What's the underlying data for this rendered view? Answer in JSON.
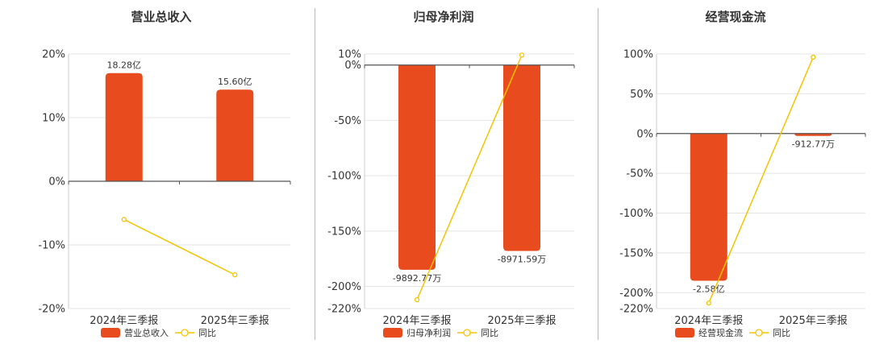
{
  "chart_data": [
    {
      "type": "bar",
      "title": "营业总收入",
      "categories": [
        "2024年三季报",
        "2025年三季报"
      ],
      "yticks": [
        "20%",
        "10%",
        "0%",
        "-10%",
        "-20%"
      ],
      "ylim": [
        -20,
        20
      ],
      "series": [
        {
          "name": "营业总收入",
          "kind": "bar",
          "values": [
            17,
            14.4
          ],
          "labels": [
            "18.28亿",
            "15.60亿"
          ],
          "color": "#e84c1e"
        },
        {
          "name": "同比",
          "kind": "line",
          "values": [
            -6.0,
            -14.7
          ],
          "color": "#f5c400"
        }
      ],
      "legend": "bottom"
    },
    {
      "type": "bar",
      "title": "归母净利润",
      "categories": [
        "2024年三季报",
        "2025年三季报"
      ],
      "yticks": [
        "10%",
        "0%",
        "-50%",
        "-100%",
        "-150%",
        "-200%",
        "-220%"
      ],
      "ylim": [
        -220,
        10
      ],
      "series": [
        {
          "name": "归母净利润",
          "kind": "bar",
          "values": [
            -185,
            -168
          ],
          "labels": [
            "-9892.77万",
            "-8971.59万"
          ],
          "color": "#e84c1e"
        },
        {
          "name": "同比",
          "kind": "line",
          "values": [
            -212,
            9
          ],
          "color": "#f5c400"
        }
      ],
      "legend": "bottom"
    },
    {
      "type": "bar",
      "title": "经营现金流",
      "categories": [
        "2024年三季报",
        "2025年三季报"
      ],
      "yticks": [
        "100%",
        "50%",
        "0%",
        "-50%",
        "-100%",
        "-150%",
        "-200%",
        "-220%"
      ],
      "ylim": [
        -220,
        100
      ],
      "series": [
        {
          "name": "经营现金流",
          "kind": "bar",
          "values": [
            -185,
            -3
          ],
          "labels": [
            "-2.58亿",
            "-912.77万"
          ],
          "color": "#e84c1e"
        },
        {
          "name": "同比",
          "kind": "line",
          "values": [
            -213,
            96
          ],
          "color": "#f5c400"
        }
      ],
      "legend": "bottom"
    }
  ]
}
